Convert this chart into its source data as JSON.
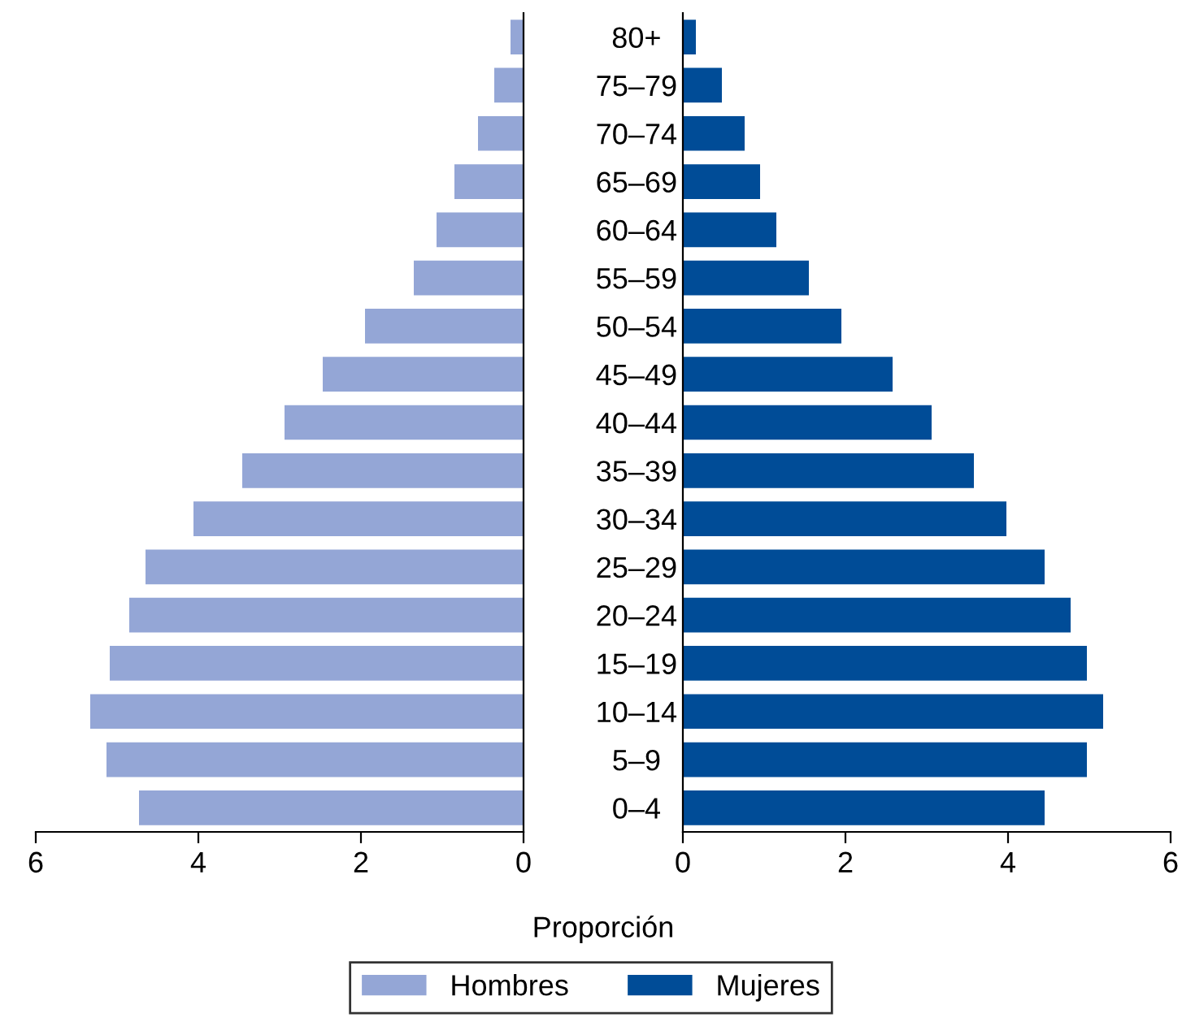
{
  "chart_data": [
    {
      "type": "bar",
      "orientation": "horizontal",
      "xlabel": "Proporción",
      "legend": "bottom",
      "categories": [
        "80+",
        "75–79",
        "70–74",
        "65–69",
        "60–64",
        "55–59",
        "50–54",
        "45–49",
        "40–44",
        "35–39",
        "30–34",
        "25–29",
        "20–24",
        "15–19",
        "10–14",
        "5–9",
        "0–4"
      ],
      "series": [
        {
          "name": "Hombres",
          "color": "#94a6d6",
          "values": [
            0.16,
            0.36,
            0.56,
            0.85,
            1.07,
            1.35,
            1.95,
            2.47,
            2.94,
            3.46,
            4.06,
            4.65,
            4.85,
            5.09,
            5.33,
            5.13,
            4.73
          ]
        }
      ],
      "xlim": [
        6,
        0
      ],
      "xticks": [
        6,
        4,
        2,
        0
      ],
      "grid": false
    },
    {
      "type": "bar",
      "orientation": "horizontal",
      "legend": "bottom",
      "categories": [
        null,
        null,
        null,
        null,
        null,
        null,
        null,
        null,
        null,
        null,
        null,
        null,
        null,
        null,
        null,
        null,
        null
      ],
      "series": [
        {
          "name": "Mujeres",
          "color": "#004c97",
          "values": [
            0.16,
            0.48,
            0.76,
            0.95,
            1.15,
            1.55,
            1.95,
            2.58,
            3.06,
            3.58,
            3.98,
            4.45,
            4.77,
            4.97,
            5.17,
            4.97,
            4.45
          ]
        }
      ],
      "xlim": [
        0,
        6
      ],
      "xticks": [
        0,
        2,
        4,
        6
      ],
      "grid": false
    }
  ]
}
